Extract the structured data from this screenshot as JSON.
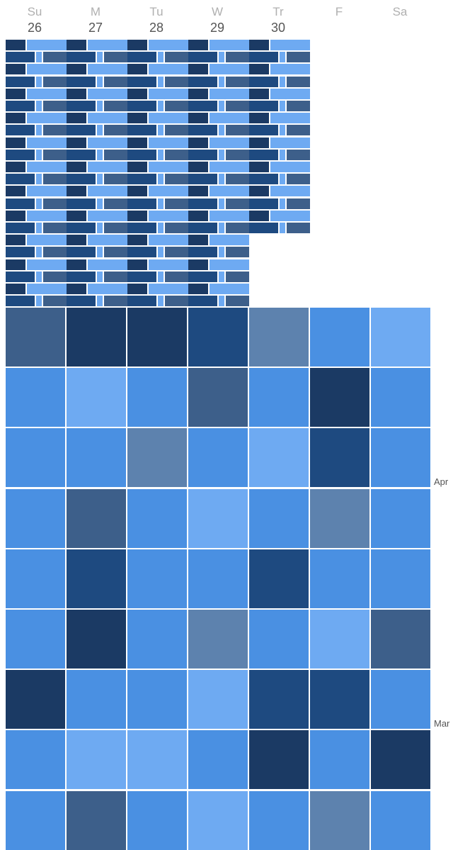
{
  "colors": {
    "darkest": "#1b3a64",
    "dark": "#1e4a80",
    "slate": "#3d5f8a",
    "steel": "#5d82ae",
    "blue": "#4a90e2",
    "light": "#6eaaf2"
  },
  "week": {
    "days": [
      {
        "name": "Su",
        "num": "26"
      },
      {
        "name": "M",
        "num": "27"
      },
      {
        "name": "Tu",
        "num": "28"
      },
      {
        "name": "W",
        "num": "29"
      },
      {
        "name": "Tr",
        "num": "30"
      },
      {
        "name": "F",
        "num": ""
      },
      {
        "name": "Sa",
        "num": ""
      }
    ]
  },
  "detail": {
    "rows_by_day": [
      22,
      22,
      22,
      22,
      16,
      0,
      0
    ]
  },
  "month_labels": [
    "Apr",
    "Mar"
  ],
  "month_grid": {
    "shades": [
      [
        "slate",
        "darkest",
        "darkest",
        "dark",
        "steel",
        "blue",
        "light"
      ],
      [
        "blue",
        "light",
        "blue",
        "slate",
        "blue",
        "darkest",
        "blue"
      ],
      [
        "blue",
        "blue",
        "steel",
        "blue",
        "light",
        "dark",
        "blue"
      ],
      [
        "blue",
        "slate",
        "blue",
        "light",
        "blue",
        "steel",
        "blue"
      ],
      [
        "blue",
        "dark",
        "blue",
        "blue",
        "dark",
        "blue",
        "blue"
      ],
      [
        "blue",
        "darkest",
        "blue",
        "steel",
        "blue",
        "light",
        "slate"
      ],
      [
        "darkest",
        "blue",
        "blue",
        "light",
        "dark",
        "dark",
        "blue"
      ],
      [
        "blue",
        "light",
        "light",
        "blue",
        "darkest",
        "blue",
        "darkest"
      ],
      [
        "blue",
        "slate",
        "blue",
        "light",
        "blue",
        "steel",
        "blue"
      ]
    ]
  }
}
